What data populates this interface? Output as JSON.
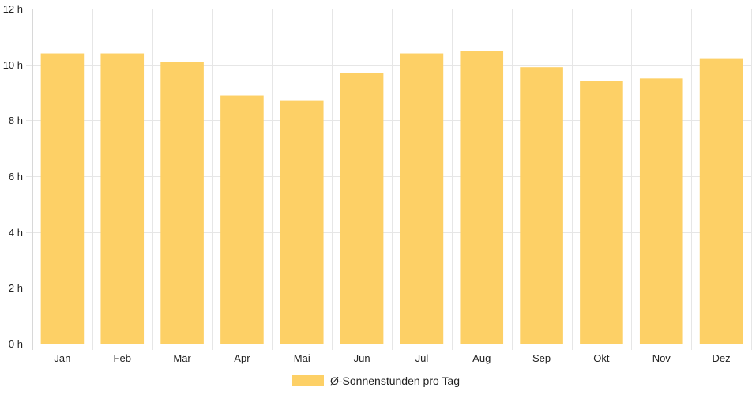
{
  "chart_data": {
    "type": "bar",
    "categories": [
      "Jan",
      "Feb",
      "Mär",
      "Apr",
      "Mai",
      "Jun",
      "Jul",
      "Aug",
      "Sep",
      "Okt",
      "Nov",
      "Dez"
    ],
    "series": [
      {
        "name": "Ø-Sonnenstunden pro Tag",
        "values": [
          10.4,
          10.4,
          10.1,
          8.9,
          8.7,
          9.7,
          10.4,
          10.5,
          9.9,
          9.4,
          9.5,
          10.2
        ],
        "color": "#fdd066"
      }
    ],
    "ylim": [
      0,
      12
    ],
    "yticks": [
      0,
      2,
      4,
      6,
      8,
      10,
      12
    ],
    "ytick_suffix": " h",
    "grid": true,
    "legend_position": "bottom"
  }
}
